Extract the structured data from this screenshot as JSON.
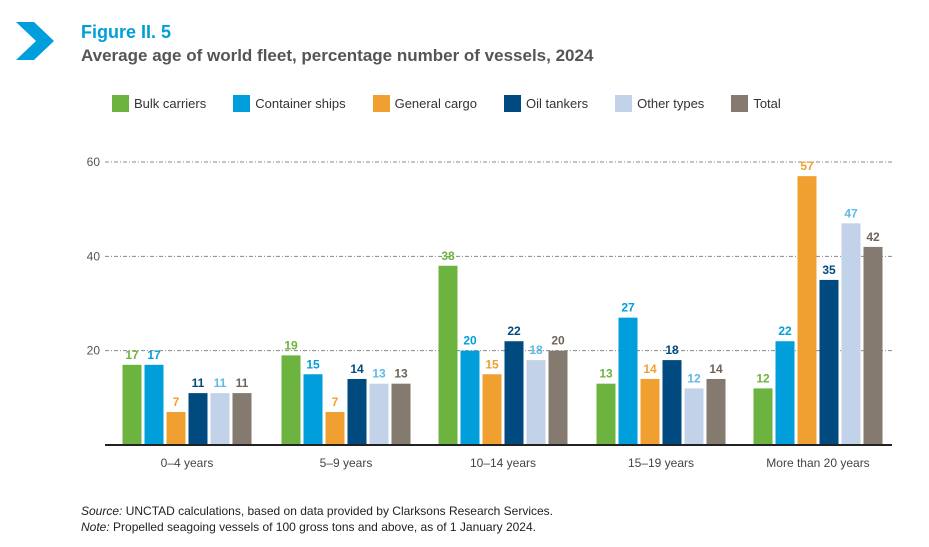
{
  "header": {
    "figure_label": "Figure II. 5",
    "title": "Average age of world fleet, percentage number of vessels, 2024"
  },
  "chart_data": {
    "type": "bar",
    "categories": [
      "0–4 years",
      "5–9 years",
      "10–14 years",
      "15–19 years",
      "More than 20 years"
    ],
    "series": [
      {
        "name": "Bulk carriers",
        "color": "#6db33f",
        "label_color": "#6db33f",
        "values": [
          17,
          19,
          38,
          13,
          12
        ]
      },
      {
        "name": "Container ships",
        "color": "#009edb",
        "label_color": "#009edb",
        "values": [
          17,
          15,
          20,
          27,
          22
        ]
      },
      {
        "name": "General cargo",
        "color": "#f0a030",
        "label_color": "#f0a030",
        "values": [
          7,
          7,
          15,
          14,
          57
        ]
      },
      {
        "name": "Oil tankers",
        "color": "#004a80",
        "label_color": "#004a80",
        "values": [
          11,
          14,
          22,
          18,
          35
        ]
      },
      {
        "name": "Other types",
        "color": "#c2d2e8",
        "label_color": "#5fb8e6",
        "values": [
          11,
          13,
          18,
          12,
          47
        ]
      },
      {
        "name": "Total",
        "color": "#857a6f",
        "label_color": "#6d645b",
        "values": [
          11,
          13,
          20,
          14,
          42
        ]
      }
    ],
    "yticks": [
      20,
      40,
      60
    ],
    "ylim": [
      0,
      60
    ],
    "grid": true,
    "legend": "top"
  },
  "footer": {
    "source_label": "Source:",
    "source_text": " UNCTAD calculations, based on data provided by Clarksons Research Services.",
    "note_label": "Note:",
    "note_text": " Propelled seagoing vessels of 100 gross tons and above, as of 1 January 2024."
  }
}
